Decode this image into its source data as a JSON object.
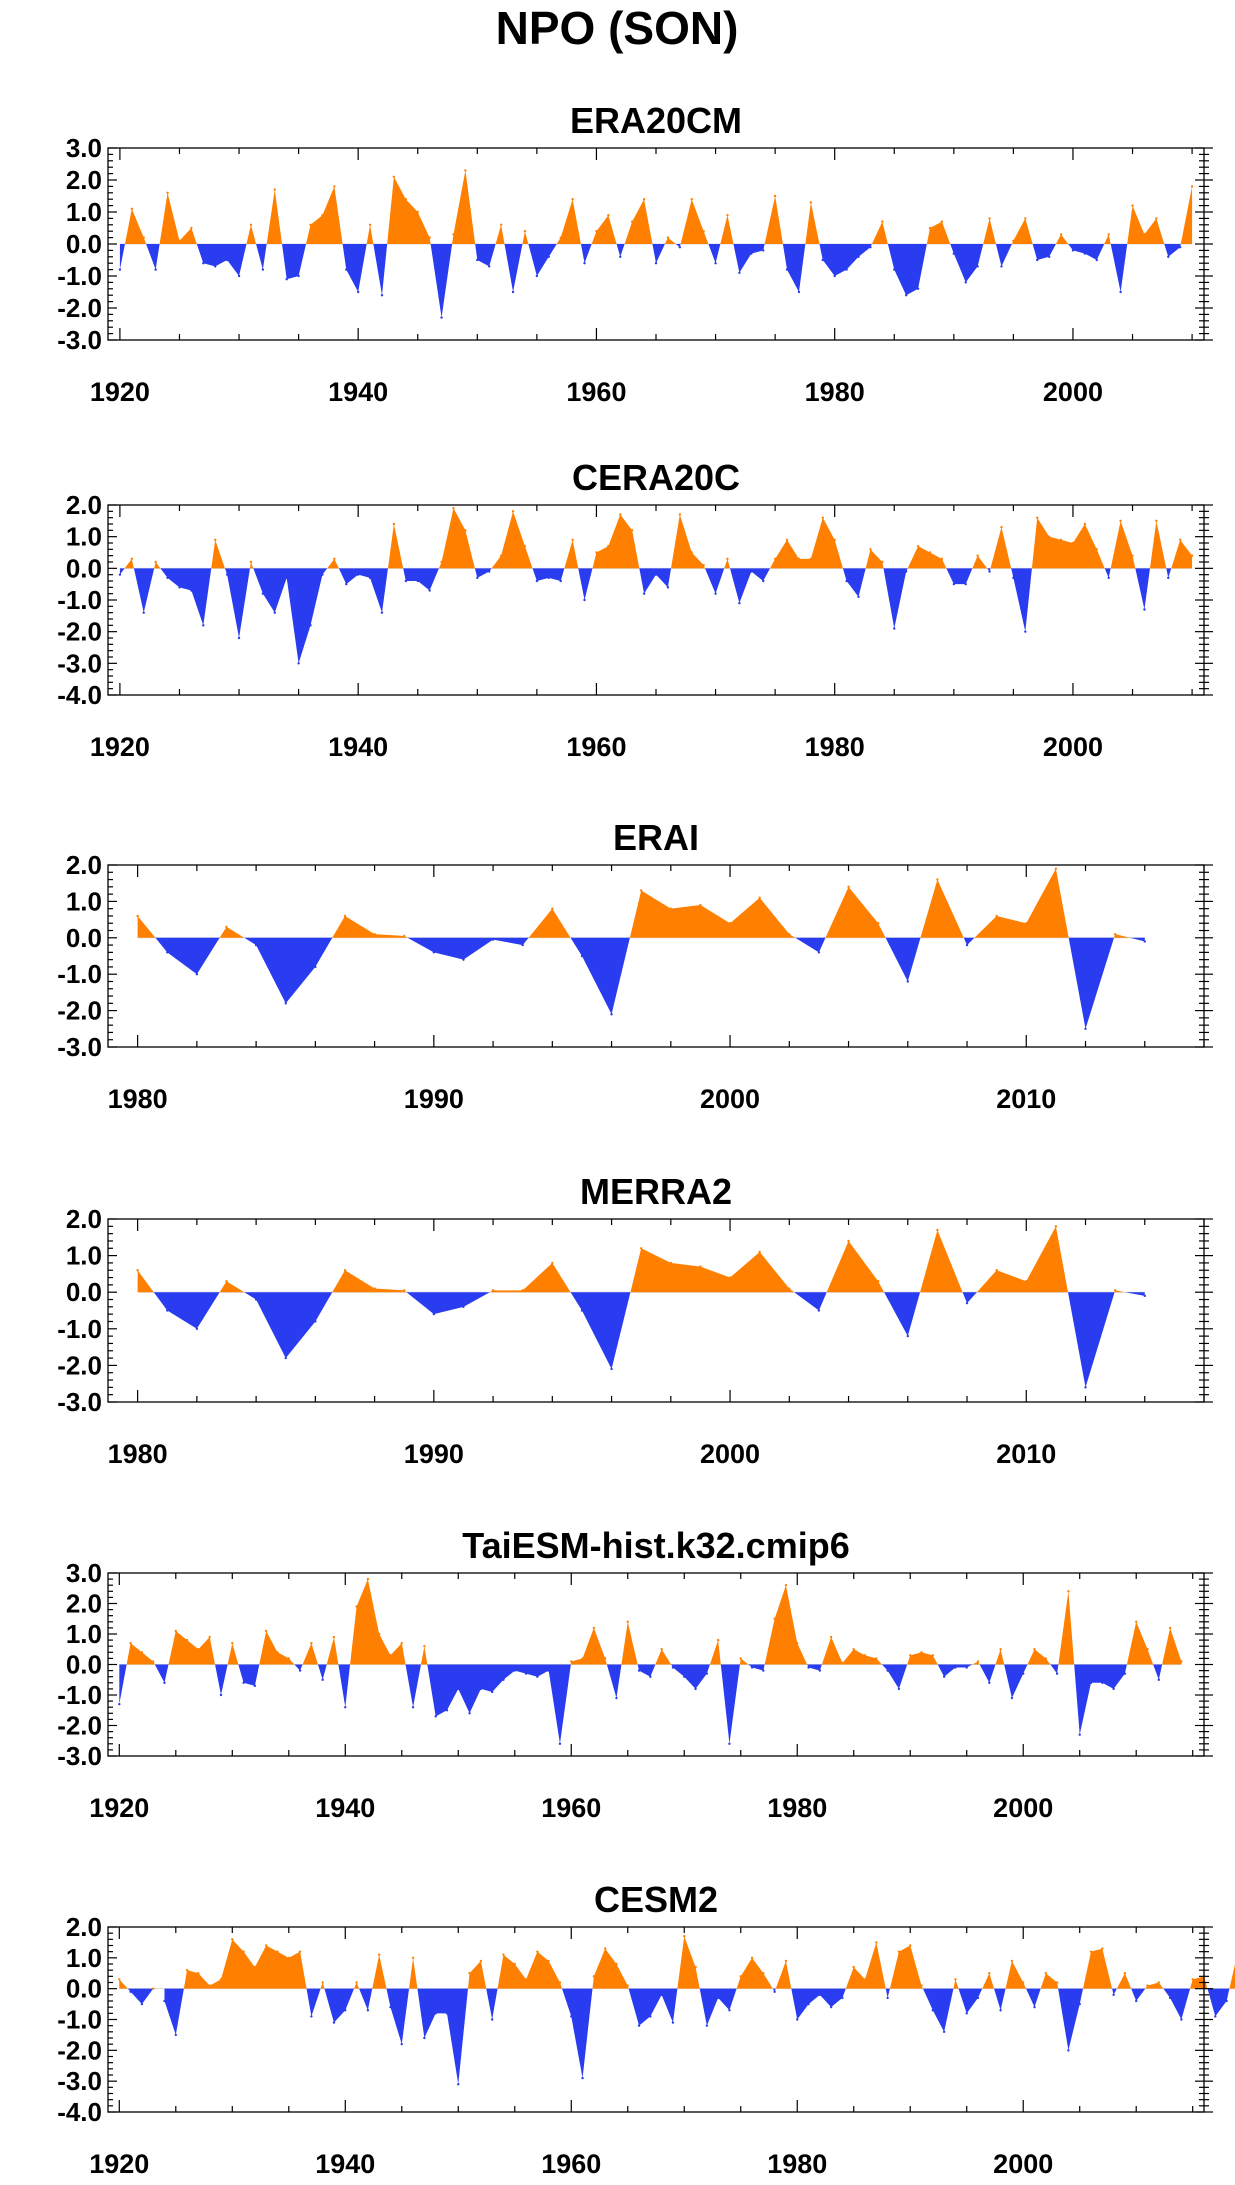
{
  "figure": {
    "title": "NPO (SON)"
  },
  "colors": {
    "positive": "#ff8000",
    "negative": "#2a3cf0",
    "zero_line": "#d8d8d8"
  },
  "chart_data": [
    {
      "type": "area",
      "title": "ERA20CM",
      "xlabel": "",
      "ylabel": "",
      "xlim": [
        1919,
        2011
      ],
      "ylim": [
        -3.0,
        3.0
      ],
      "x_ticks": [
        1920,
        1940,
        1960,
        1980,
        2000
      ],
      "y_ticks": [
        -3.0,
        -2.0,
        -1.0,
        0.0,
        1.0,
        2.0,
        3.0
      ],
      "y_tick_labels": [
        "-3.0",
        "-2.0",
        "-1.0",
        "0.0",
        "1.0",
        "2.0",
        "3.0"
      ],
      "x_start": 1920,
      "values": [
        -0.8,
        1.1,
        0.2,
        -0.8,
        1.6,
        0.1,
        0.5,
        -0.6,
        -0.7,
        -0.5,
        -1.0,
        0.6,
        -0.8,
        1.7,
        -1.1,
        -1.0,
        0.6,
        0.9,
        1.8,
        -0.8,
        -1.5,
        0.6,
        -1.6,
        2.1,
        1.4,
        1.0,
        0.2,
        -2.3,
        0.3,
        2.3,
        -0.5,
        -0.7,
        0.6,
        -1.5,
        0.4,
        -1.0,
        -0.4,
        0.2,
        1.4,
        -0.6,
        0.4,
        0.9,
        -0.4,
        0.7,
        1.4,
        -0.6,
        0.2,
        -0.1,
        1.4,
        0.4,
        -0.6,
        0.9,
        -0.9,
        -0.3,
        -0.2,
        1.5,
        -0.8,
        -1.5,
        1.3,
        -0.5,
        -1.0,
        -0.8,
        -0.4,
        -0.1,
        0.7,
        -0.8,
        -1.6,
        -1.4,
        0.5,
        0.7,
        -0.3,
        -1.2,
        -0.7,
        0.8,
        -0.7,
        0.1,
        0.8,
        -0.5,
        -0.4,
        0.3,
        -0.2,
        -0.3,
        -0.5,
        0.3,
        -1.5,
        1.2,
        0.3,
        0.8,
        -0.4,
        -0.1,
        1.8
      ]
    },
    {
      "type": "area",
      "title": "CERA20C",
      "xlabel": "",
      "ylabel": "",
      "xlim": [
        1919,
        2011
      ],
      "ylim": [
        -4.0,
        2.0
      ],
      "x_ticks": [
        1920,
        1940,
        1960,
        1980,
        2000
      ],
      "y_ticks": [
        -4.0,
        -3.0,
        -2.0,
        -1.0,
        0.0,
        1.0,
        2.0
      ],
      "y_tick_labels": [
        "-4.0",
        "-3.0",
        "-2.0",
        "-1.0",
        "0.0",
        "1.0",
        "2.0"
      ],
      "x_start": 1920,
      "values": [
        -0.2,
        0.3,
        -1.4,
        0.2,
        -0.3,
        -0.6,
        -0.7,
        -1.8,
        0.9,
        -0.2,
        -2.2,
        0.2,
        -0.8,
        -1.4,
        -0.3,
        -3.0,
        -1.8,
        -0.2,
        0.3,
        -0.5,
        -0.2,
        -0.3,
        -1.4,
        1.4,
        -0.4,
        -0.4,
        -0.7,
        0.2,
        1.9,
        1.2,
        -0.3,
        -0.1,
        0.4,
        1.8,
        0.7,
        -0.4,
        -0.3,
        -0.4,
        0.9,
        -1.0,
        0.5,
        0.7,
        1.7,
        1.2,
        -0.8,
        -0.2,
        -0.6,
        1.7,
        0.5,
        0.1,
        -0.8,
        0.3,
        -1.1,
        -0.1,
        -0.4,
        0.3,
        0.9,
        0.3,
        0.3,
        1.6,
        0.9,
        -0.4,
        -0.9,
        0.6,
        0.2,
        -1.9,
        -0.1,
        0.7,
        0.5,
        0.3,
        -0.5,
        -0.5,
        0.4,
        -0.1,
        1.3,
        -0.3,
        -2.0,
        1.6,
        1.0,
        0.9,
        0.8,
        1.4,
        0.6,
        -0.3,
        1.5,
        0.4,
        -1.3,
        1.5,
        -0.3,
        0.9,
        0.4
      ]
    },
    {
      "type": "area",
      "title": "ERAI",
      "xlabel": "",
      "ylabel": "",
      "xlim": [
        1979,
        2016
      ],
      "ylim": [
        -3.0,
        2.0
      ],
      "x_ticks": [
        1980,
        1990,
        2000,
        2010
      ],
      "y_ticks": [
        -3.0,
        -2.0,
        -1.0,
        0.0,
        1.0,
        2.0
      ],
      "y_tick_labels": [
        "-3.0",
        "-2.0",
        "-1.0",
        "0.0",
        "1.0",
        "2.0"
      ],
      "x_start": 1980,
      "values": [
        0.6,
        -0.4,
        -1.0,
        0.3,
        -0.2,
        -1.8,
        -0.8,
        0.6,
        0.1,
        0.05,
        -0.4,
        -0.6,
        -0.05,
        -0.2,
        0.8,
        -0.5,
        -2.1,
        1.3,
        0.8,
        0.9,
        0.4,
        1.1,
        0.1,
        -0.4,
        1.4,
        0.4,
        -1.2,
        1.6,
        -0.2,
        0.6,
        0.4,
        1.9,
        -2.5,
        0.1,
        -0.1
      ]
    },
    {
      "type": "area",
      "title": "MERRA2",
      "xlabel": "",
      "ylabel": "",
      "xlim": [
        1979,
        2016
      ],
      "ylim": [
        -3.0,
        2.0
      ],
      "x_ticks": [
        1980,
        1990,
        2000,
        2010
      ],
      "y_ticks": [
        -3.0,
        -2.0,
        -1.0,
        0.0,
        1.0,
        2.0
      ],
      "y_tick_labels": [
        "-3.0",
        "-2.0",
        "-1.0",
        "0.0",
        "1.0",
        "2.0"
      ],
      "x_start": 1980,
      "values": [
        0.6,
        -0.5,
        -1.0,
        0.3,
        -0.2,
        -1.8,
        -0.8,
        0.6,
        0.1,
        0.05,
        -0.6,
        -0.4,
        0.05,
        0.05,
        0.8,
        -0.5,
        -2.1,
        1.2,
        0.8,
        0.7,
        0.4,
        1.1,
        0.1,
        -0.5,
        1.4,
        0.3,
        -1.2,
        1.7,
        -0.3,
        0.6,
        0.3,
        1.8,
        -2.6,
        0.05,
        -0.1
      ]
    },
    {
      "type": "area",
      "title": "TaiESM-hist.k32.cmip6",
      "xlabel": "",
      "ylabel": "",
      "xlim": [
        1919,
        2016
      ],
      "ylim": [
        -3.0,
        3.0
      ],
      "x_ticks": [
        1920,
        1940,
        1960,
        1980,
        2000
      ],
      "y_ticks": [
        -3.0,
        -2.0,
        -1.0,
        0.0,
        1.0,
        2.0,
        3.0
      ],
      "y_tick_labels": [
        "-3.0",
        "-2.0",
        "-1.0",
        "0.0",
        "1.0",
        "2.0",
        "3.0"
      ],
      "x_start": 1920,
      "values": [
        -1.3,
        0.7,
        0.4,
        0.1,
        -0.6,
        1.1,
        0.8,
        0.5,
        0.9,
        -1.0,
        0.7,
        -0.6,
        -0.7,
        1.1,
        0.4,
        0.2,
        -0.2,
        0.7,
        -0.5,
        0.9,
        -1.4,
        1.9,
        2.8,
        1.0,
        0.3,
        0.7,
        -1.4,
        0.6,
        -1.7,
        -1.5,
        -0.8,
        -1.6,
        -0.8,
        -0.9,
        -0.5,
        -0.2,
        -0.3,
        -0.4,
        -0.2,
        -2.6,
        0.1,
        0.2,
        1.2,
        0.2,
        -1.1,
        1.4,
        -0.2,
        -0.4,
        0.5,
        -0.1,
        -0.4,
        -0.8,
        -0.3,
        0.8,
        -2.6,
        0.2,
        -0.1,
        -0.2,
        1.5,
        2.6,
        0.7,
        -0.1,
        -0.2,
        0.9,
        0.05,
        0.5,
        0.3,
        0.2,
        -0.2,
        -0.8,
        0.3,
        0.4,
        0.3,
        -0.4,
        -0.1,
        -0.1,
        0.1,
        -0.6,
        0.5,
        -1.1,
        -0.3,
        0.5,
        0.2,
        -0.3,
        2.4,
        -2.3,
        -0.6,
        -0.6,
        -0.8,
        -0.3,
        1.4,
        0.5,
        -0.5,
        1.2,
        0.1
      ]
    },
    {
      "type": "area",
      "title": "CESM2",
      "xlabel": "",
      "ylabel": "",
      "xlim": [
        1919,
        2016
      ],
      "ylim": [
        -4.0,
        2.0
      ],
      "x_ticks": [
        1920,
        1940,
        1960,
        1980,
        2000
      ],
      "y_ticks": [
        -4.0,
        -3.0,
        -2.0,
        -1.0,
        0.0,
        1.0,
        2.0
      ],
      "y_tick_labels": [
        "-4.0",
        "-3.0",
        "-2.0",
        "-1.0",
        "0.0",
        "1.0",
        "2.0"
      ],
      "x_start": 1920,
      "values": [
        0.3,
        -0.1,
        -0.5,
        0.0,
        -0.4,
        -1.5,
        0.6,
        0.5,
        0.1,
        0.3,
        1.6,
        1.2,
        0.7,
        1.4,
        1.2,
        1.0,
        1.2,
        -0.9,
        0.2,
        -1.1,
        -0.7,
        0.2,
        -0.7,
        1.1,
        -0.6,
        -1.8,
        1.0,
        -1.6,
        -0.8,
        -0.8,
        -3.1,
        0.5,
        0.9,
        -1.0,
        1.1,
        0.8,
        0.3,
        1.2,
        0.9,
        0.2,
        -0.9,
        -2.9,
        0.4,
        1.3,
        0.8,
        0.1,
        -1.2,
        -0.9,
        -0.2,
        -1.1,
        1.7,
        0.7,
        -1.2,
        -0.3,
        -0.7,
        0.4,
        1.0,
        0.5,
        -0.1,
        0.9,
        -1.0,
        -0.5,
        -0.2,
        -0.6,
        -0.3,
        0.7,
        0.3,
        1.5,
        -0.3,
        1.2,
        1.4,
        0.1,
        -0.7,
        -1.4,
        0.3,
        -0.8,
        -0.3,
        0.5,
        -0.7,
        0.9,
        0.2,
        -0.6,
        0.5,
        0.2,
        -2.0,
        -0.5,
        1.2,
        1.3,
        -0.2,
        0.5,
        -0.4,
        0.1,
        0.2,
        -0.3,
        -1.0,
        0.3,
        0.4,
        -0.9,
        -0.4,
        1.2
      ]
    }
  ]
}
